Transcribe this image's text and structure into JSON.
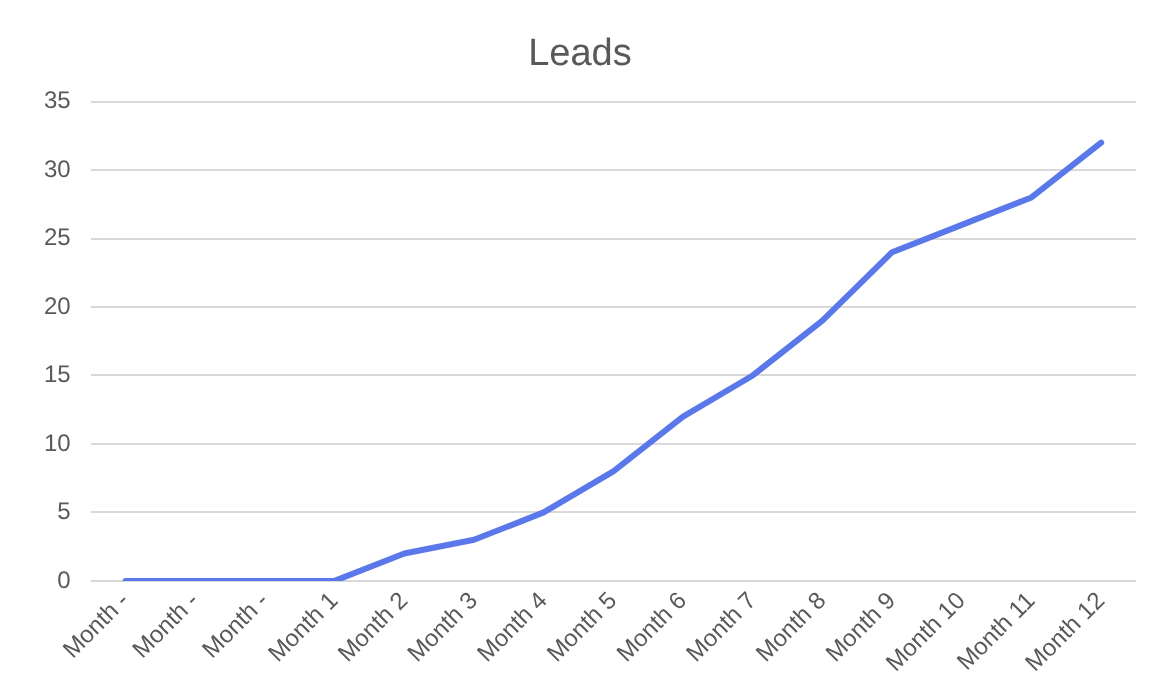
{
  "chart_data": {
    "type": "line",
    "title": "Leads",
    "categories": [
      "Month -",
      "Month -",
      "Month -",
      "Month 1",
      "Month 2",
      "Month 3",
      "Month 4",
      "Month 5",
      "Month 6",
      "Month 7",
      "Month 8",
      "Month 9",
      "Month 10",
      "Month 11",
      "Month 12"
    ],
    "series": [
      {
        "color": "#5b78ea",
        "values": [
          0,
          0,
          0,
          0,
          2,
          3,
          5,
          8,
          12,
          15,
          19,
          24,
          26,
          28,
          32
        ]
      }
    ],
    "ylim": [
      0,
      35
    ],
    "yticks": [
      0,
      5,
      10,
      15,
      20,
      25,
      30,
      35
    ],
    "grid": "y",
    "legend": false,
    "marker": "none",
    "line_style": "solid"
  }
}
